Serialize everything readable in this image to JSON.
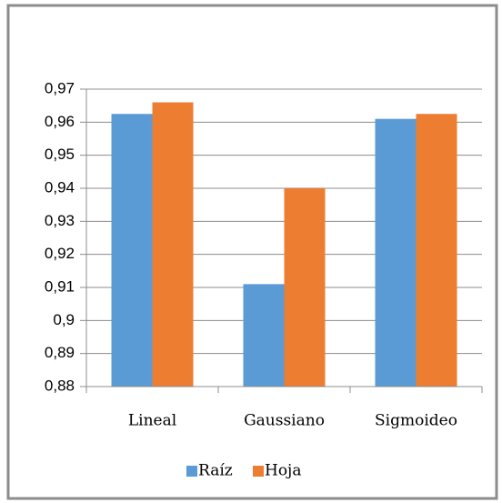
{
  "chart_data": {
    "type": "bar",
    "categories": [
      "Lineal",
      "Gaussiano",
      "Sigmoideo"
    ],
    "series": [
      {
        "name": "Raíz",
        "color": "#5b9bd5",
        "values": [
          0.9625,
          0.911,
          0.961
        ]
      },
      {
        "name": "Hoja",
        "color": "#ed7d31",
        "values": [
          0.966,
          0.94,
          0.9625
        ]
      }
    ],
    "ylim": [
      0.88,
      0.97
    ],
    "yticks": [
      {
        "value": 0.88,
        "label": "0,88"
      },
      {
        "value": 0.89,
        "label": "0,89"
      },
      {
        "value": 0.9,
        "label": "0,9"
      },
      {
        "value": 0.91,
        "label": "0,91"
      },
      {
        "value": 0.92,
        "label": "0,92"
      },
      {
        "value": 0.93,
        "label": "0,93"
      },
      {
        "value": 0.94,
        "label": "0,94"
      },
      {
        "value": 0.95,
        "label": "0,95"
      },
      {
        "value": 0.96,
        "label": "0,96"
      },
      {
        "value": 0.97,
        "label": "0,97"
      }
    ],
    "grid": true,
    "legend": "bottom"
  }
}
